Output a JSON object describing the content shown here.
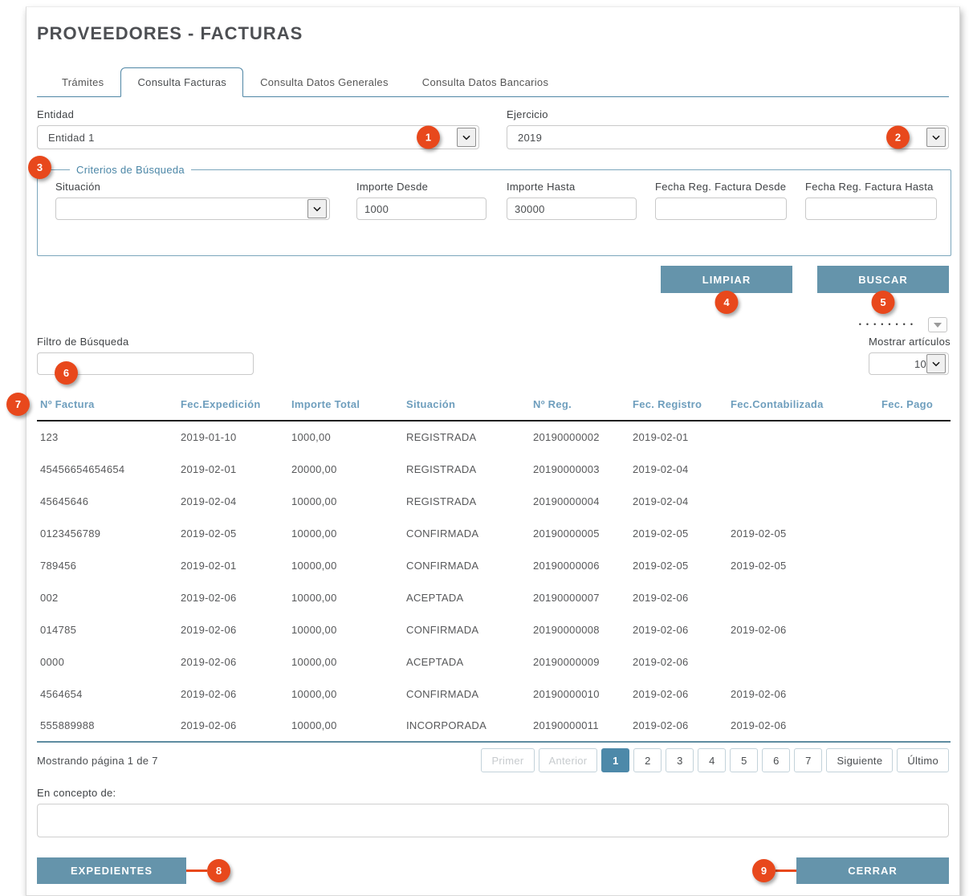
{
  "page": {
    "title": "PROVEEDORES - FACTURAS"
  },
  "tabs": [
    {
      "label": "Trámites",
      "active": false
    },
    {
      "label": "Consulta Facturas",
      "active": true
    },
    {
      "label": "Consulta Datos Generales",
      "active": false
    },
    {
      "label": "Consulta Datos Bancarios",
      "active": false
    }
  ],
  "filters": {
    "entidad": {
      "label": "Entidad",
      "value": "Entidad 1"
    },
    "ejercicio": {
      "label": "Ejercicio",
      "value": "2019"
    },
    "criterios": {
      "legend": "Criterios de Búsqueda",
      "situacion": {
        "label": "Situación",
        "value": ""
      },
      "importe_desde": {
        "label": "Importe Desde",
        "value": "1000"
      },
      "importe_hasta": {
        "label": "Importe Hasta",
        "value": "30000"
      },
      "fecha_desde": {
        "label": "Fecha Reg. Factura Desde",
        "value": ""
      },
      "fecha_hasta": {
        "label": "Fecha Reg. Factura Hasta",
        "value": ""
      }
    },
    "limpiar_label": "LIMPIAR",
    "buscar_label": "BUSCAR"
  },
  "toolbar": {
    "dots": "••••••••",
    "filtro_busqueda": {
      "label": "Filtro de Búsqueda",
      "value": ""
    },
    "mostrar_articulos": {
      "label": "Mostrar artículos",
      "value": "10"
    }
  },
  "table": {
    "columns": [
      "Nº Factura",
      "Fec.Expedición",
      "Importe Total",
      "Situación",
      "Nº Reg.",
      "Fec. Registro",
      "Fec.Contabilizada",
      "Fec. Pago"
    ],
    "rows": [
      [
        "123",
        "2019-01-10",
        "1000,00",
        "REGISTRADA",
        "20190000002",
        "2019-02-01",
        "",
        ""
      ],
      [
        "45456654654654",
        "2019-02-01",
        "20000,00",
        "REGISTRADA",
        "20190000003",
        "2019-02-04",
        "",
        ""
      ],
      [
        "45645646",
        "2019-02-04",
        "10000,00",
        "REGISTRADA",
        "20190000004",
        "2019-02-04",
        "",
        ""
      ],
      [
        "0123456789",
        "2019-02-05",
        "10000,00",
        "CONFIRMADA",
        "20190000005",
        "2019-02-05",
        "2019-02-05",
        ""
      ],
      [
        "789456",
        "2019-02-01",
        "10000,00",
        "CONFIRMADA",
        "20190000006",
        "2019-02-05",
        "2019-02-05",
        ""
      ],
      [
        "002",
        "2019-02-06",
        "10000,00",
        "ACEPTADA",
        "20190000007",
        "2019-02-06",
        "",
        ""
      ],
      [
        "014785",
        "2019-02-06",
        "10000,00",
        "CONFIRMADA",
        "20190000008",
        "2019-02-06",
        "2019-02-06",
        ""
      ],
      [
        "0000",
        "2019-02-06",
        "10000,00",
        "ACEPTADA",
        "20190000009",
        "2019-02-06",
        "",
        ""
      ],
      [
        "4564654",
        "2019-02-06",
        "10000,00",
        "CONFIRMADA",
        "20190000010",
        "2019-02-06",
        "2019-02-06",
        ""
      ],
      [
        "555889988",
        "2019-02-06",
        "10000,00",
        "INCORPORADA",
        "20190000011",
        "2019-02-06",
        "2019-02-06",
        ""
      ]
    ]
  },
  "pagination": {
    "status": "Mostrando página 1 de 7",
    "buttons": [
      {
        "label": "Primer",
        "state": "disabled"
      },
      {
        "label": "Anterior",
        "state": "disabled"
      },
      {
        "label": "1",
        "state": "active"
      },
      {
        "label": "2",
        "state": "normal"
      },
      {
        "label": "3",
        "state": "normal"
      },
      {
        "label": "4",
        "state": "normal"
      },
      {
        "label": "5",
        "state": "normal"
      },
      {
        "label": "6",
        "state": "normal"
      },
      {
        "label": "7",
        "state": "normal"
      },
      {
        "label": "Siguiente",
        "state": "normal"
      },
      {
        "label": "Último",
        "state": "normal"
      }
    ]
  },
  "concepto": {
    "label": "En concepto de:",
    "value": ""
  },
  "footer": {
    "expedientes_label": "EXPEDIENTES",
    "cerrar_label": "CERRAR"
  },
  "badges": [
    "1",
    "2",
    "3",
    "4",
    "5",
    "6",
    "7",
    "8",
    "9"
  ],
  "colors": {
    "accent": "#6594AB",
    "accent_deep": "#4D89A9",
    "badge": "#E8481C",
    "head": "#6E9EBD",
    "tabline": "#4F86A5",
    "fieldset": "#7BA6BC"
  }
}
